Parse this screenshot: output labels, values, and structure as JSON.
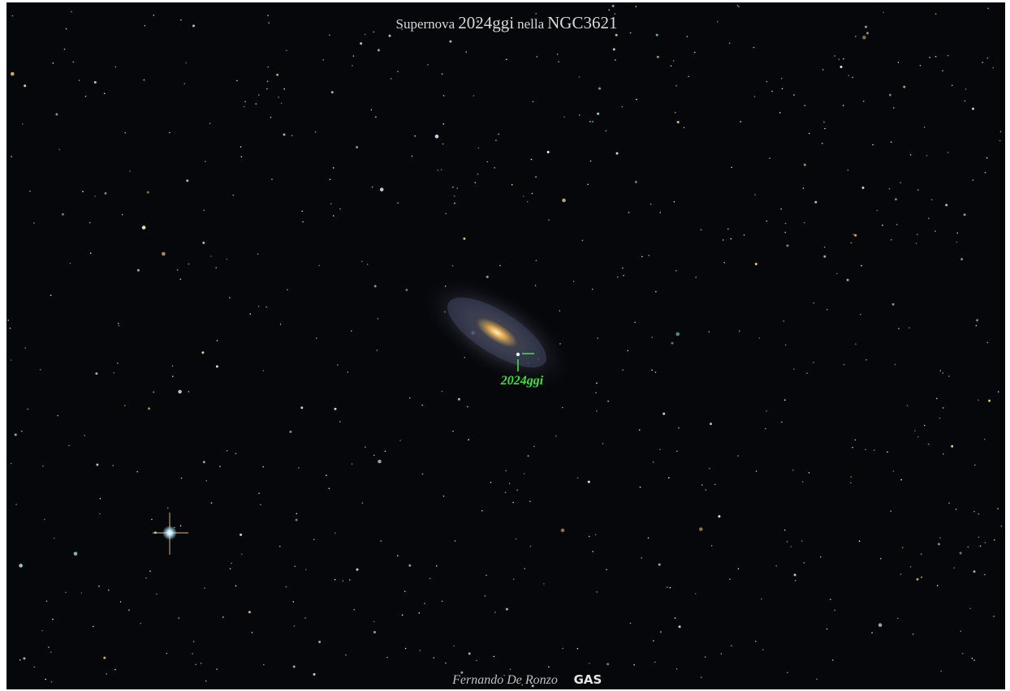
{
  "title": {
    "parts": [
      "Supernova",
      "2024ggi",
      "nella",
      "NGC3621"
    ]
  },
  "annotation": {
    "label": "2024ggi"
  },
  "credit": {
    "author": "Fernando De Ronzo",
    "logo": "GAS"
  }
}
